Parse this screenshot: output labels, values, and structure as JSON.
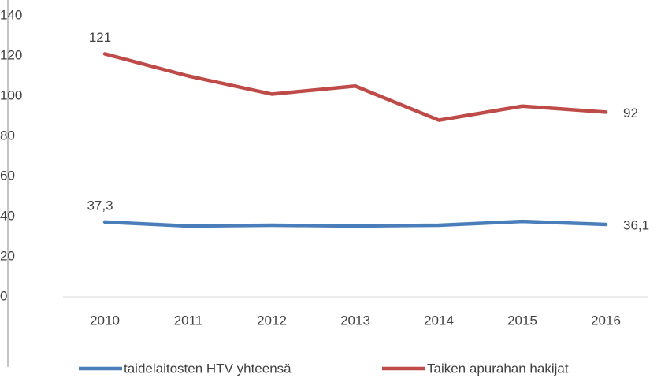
{
  "chart_data": {
    "type": "line",
    "categories": [
      "2010",
      "2011",
      "2012",
      "2013",
      "2014",
      "2015",
      "2016"
    ],
    "series": [
      {
        "name": "taidelaitosten HTV yhteensä",
        "color": "#4a7ebb",
        "values": [
          37.3,
          35.3,
          35.7,
          35.3,
          35.7,
          37.6,
          36.1
        ],
        "value_labels": [
          "37,3",
          null,
          null,
          null,
          null,
          null,
          "36,1"
        ]
      },
      {
        "name": "Taiken apurahan hakijat",
        "color": "#be4b48",
        "values": [
          121,
          110,
          101,
          105,
          88,
          95,
          92
        ],
        "value_labels": [
          "121",
          null,
          null,
          null,
          null,
          null,
          "92"
        ]
      }
    ],
    "ylim": [
      0,
      140
    ],
    "yticks": [
      0,
      20,
      40,
      60,
      80,
      100,
      120,
      140
    ],
    "legend": "bottom"
  }
}
